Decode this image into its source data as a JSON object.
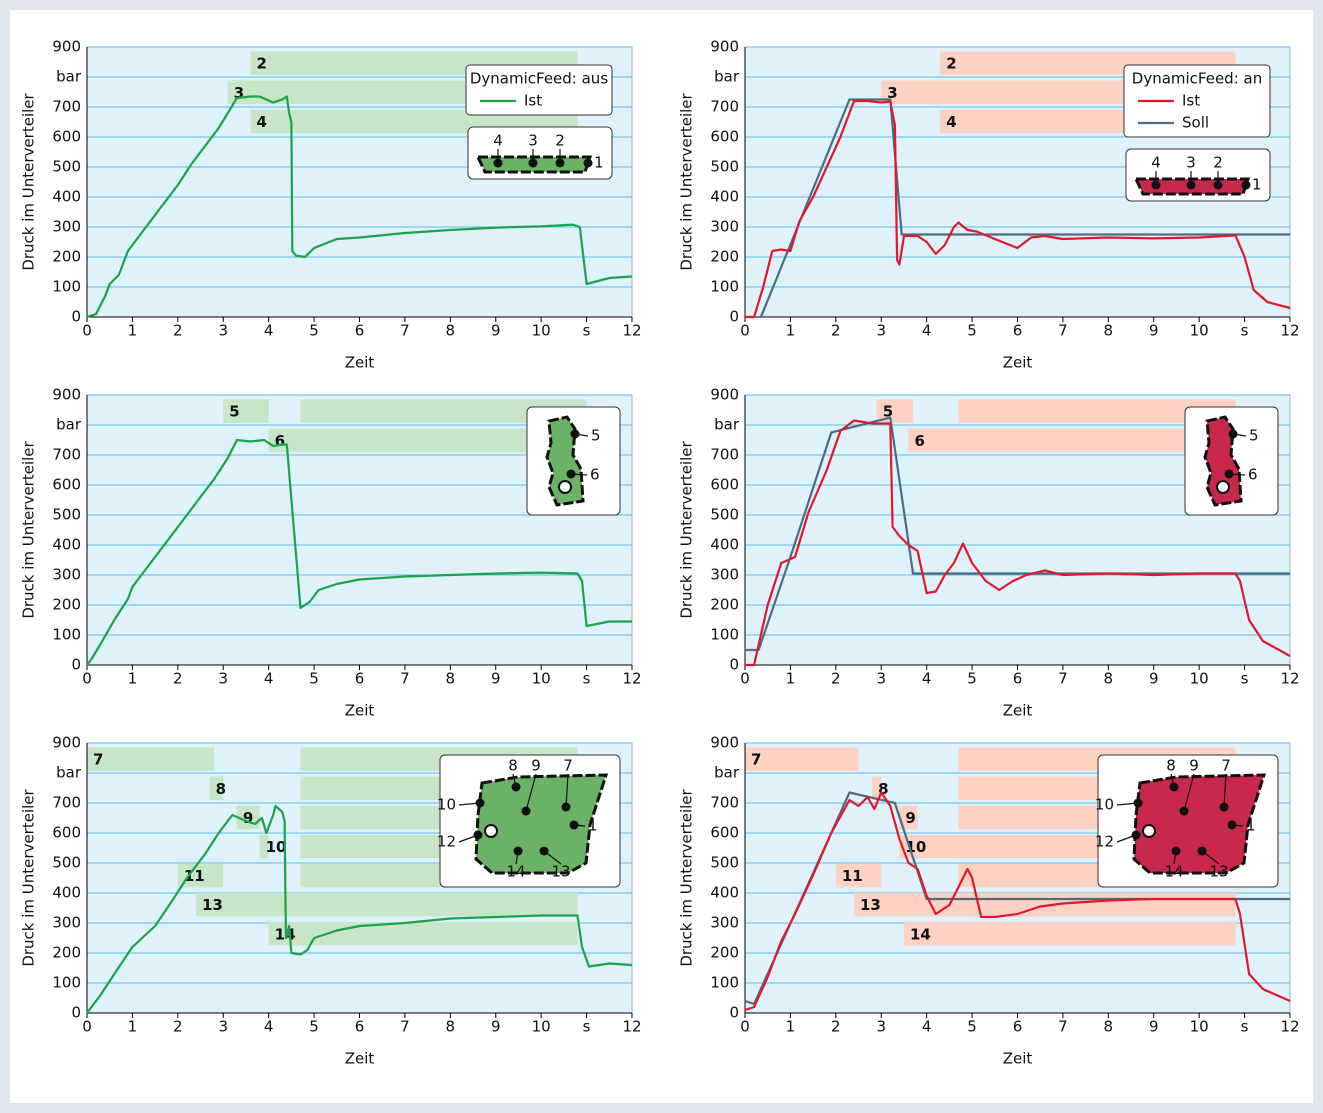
{
  "chart_data": [
    {
      "type": "line",
      "xlabel": "Zeit",
      "ylabel": "Druck im Unterverteiler",
      "xlim": [
        0,
        12
      ],
      "ylim": [
        0,
        900
      ],
      "xticks": [
        0,
        1,
        2,
        3,
        4,
        5,
        6,
        7,
        8,
        9,
        10,
        {
          "value": 11,
          "label": "s"
        },
        12
      ],
      "yticks": [
        0,
        100,
        200,
        300,
        400,
        500,
        600,
        700,
        {
          "value": 800,
          "label": "bar"
        },
        900
      ],
      "grid": true,
      "legend_title": "DynamicFeed: aus",
      "band_color": "#c9e5c8",
      "inset_color": "#6ab265",
      "inset_labels": [
        "4",
        "3",
        "2",
        "1"
      ],
      "bands": [
        {
          "label": "2",
          "segments": [
            [
              3.6,
              10.8
            ]
          ]
        },
        {
          "label": "3",
          "segments": [
            [
              3.1,
              10.8
            ]
          ]
        },
        {
          "label": "4",
          "segments": [
            [
              3.6,
              10.8
            ]
          ]
        }
      ],
      "series": [
        {
          "name": "Ist",
          "color": "#1aa34a",
          "x": [
            0,
            0.2,
            0.3,
            0.4,
            0.5,
            0.7,
            0.9,
            1.1,
            1.3,
            1.5,
            1.7,
            2.0,
            2.3,
            2.6,
            2.9,
            3.1,
            3.3,
            3.6,
            3.8,
            4.1,
            4.3,
            4.4,
            4.45,
            4.5,
            4.52,
            4.6,
            4.8,
            5.0,
            5.5,
            6,
            7,
            8,
            9,
            10,
            10.7,
            10.85,
            11.0,
            11.5,
            12
          ],
          "values": [
            0,
            10,
            40,
            70,
            110,
            140,
            220,
            260,
            300,
            340,
            380,
            440,
            510,
            570,
            630,
            680,
            730,
            735,
            735,
            715,
            725,
            735,
            680,
            650,
            220,
            205,
            200,
            230,
            260,
            265,
            280,
            290,
            298,
            302,
            308,
            300,
            110,
            130,
            135
          ]
        }
      ]
    },
    {
      "type": "line",
      "xlabel": "Zeit",
      "ylabel": "Druck im Unterverteiler",
      "xlim": [
        0,
        12
      ],
      "ylim": [
        0,
        900
      ],
      "xticks": [
        0,
        1,
        2,
        3,
        4,
        5,
        6,
        7,
        8,
        9,
        10,
        {
          "value": 11,
          "label": "s"
        },
        12
      ],
      "yticks": [
        0,
        100,
        200,
        300,
        400,
        500,
        600,
        700,
        {
          "value": 800,
          "label": "bar"
        },
        900
      ],
      "grid": true,
      "legend_title": "DynamicFeed: an",
      "band_color": "#fdd2c2",
      "inset_color": "#c8284a",
      "inset_labels": [
        "4",
        "3",
        "2",
        "1"
      ],
      "bands": [
        {
          "label": "2",
          "segments": [
            [
              4.3,
              10.8
            ]
          ]
        },
        {
          "label": "3",
          "segments": [
            [
              3.0,
              10.8
            ]
          ]
        },
        {
          "label": "4",
          "segments": [
            [
              4.3,
              10.8
            ]
          ]
        }
      ],
      "series": [
        {
          "name": "Ist",
          "color": "#e3172b",
          "x": [
            0,
            0.2,
            0.4,
            0.6,
            0.8,
            1.0,
            1.2,
            1.5,
            1.8,
            2.1,
            2.4,
            2.7,
            3.0,
            3.2,
            3.3,
            3.35,
            3.4,
            3.5,
            3.8,
            4.0,
            4.2,
            4.4,
            4.6,
            4.7,
            4.9,
            5.1,
            5.5,
            6,
            6.3,
            6.6,
            7,
            8,
            9,
            10,
            10.8,
            11.0,
            11.2,
            11.5,
            12
          ],
          "values": [
            0,
            0,
            100,
            220,
            225,
            220,
            320,
            400,
            500,
            600,
            720,
            720,
            715,
            718,
            640,
            190,
            175,
            270,
            270,
            250,
            210,
            240,
            300,
            315,
            290,
            285,
            260,
            230,
            265,
            270,
            260,
            265,
            262,
            265,
            272,
            200,
            90,
            50,
            30
          ]
        },
        {
          "name": "Soll",
          "color": "#4d6b83",
          "x": [
            0.35,
            2.3,
            3.2,
            3.45,
            12
          ],
          "values": [
            0,
            725,
            725,
            275,
            275
          ]
        }
      ]
    },
    {
      "type": "line",
      "xlabel": "Zeit",
      "ylabel": "Druck im Unterverteiler",
      "xlim": [
        0,
        12
      ],
      "ylim": [
        0,
        900
      ],
      "xticks": [
        0,
        1,
        2,
        3,
        4,
        5,
        6,
        7,
        8,
        9,
        10,
        {
          "value": 11,
          "label": "s"
        },
        12
      ],
      "yticks": [
        0,
        100,
        200,
        300,
        400,
        500,
        600,
        700,
        {
          "value": 800,
          "label": "bar"
        },
        900
      ],
      "grid": true,
      "band_color": "#c9e5c8",
      "inset_color": "#6ab265",
      "inset_labels": [
        "5",
        "6"
      ],
      "bands": [
        {
          "label": "5",
          "segments": [
            [
              3.0,
              4.0
            ],
            [
              4.7,
              11.0
            ]
          ]
        },
        {
          "label": "6",
          "segments": [
            [
              4.0,
              11.0
            ]
          ]
        }
      ],
      "series": [
        {
          "color": "#1aa34a",
          "x": [
            0,
            0.1,
            0.3,
            0.6,
            0.9,
            1.0,
            1.3,
            1.7,
            2.1,
            2.5,
            2.8,
            3.1,
            3.3,
            3.6,
            3.9,
            4.1,
            4.3,
            4.4,
            4.7,
            4.9,
            5.1,
            5.5,
            6,
            7,
            8,
            9,
            10,
            10.8,
            10.9,
            11.0,
            11.5,
            12
          ],
          "values": [
            0,
            20,
            70,
            150,
            220,
            260,
            320,
            400,
            480,
            560,
            620,
            690,
            750,
            745,
            750,
            730,
            735,
            735,
            190,
            210,
            250,
            270,
            285,
            295,
            300,
            305,
            308,
            305,
            280,
            130,
            145,
            145
          ]
        }
      ]
    },
    {
      "type": "line",
      "xlabel": "Zeit",
      "ylabel": "Druck im Unterverteiler",
      "xlim": [
        0,
        12
      ],
      "ylim": [
        0,
        900
      ],
      "xticks": [
        0,
        1,
        2,
        3,
        4,
        5,
        6,
        7,
        8,
        9,
        10,
        {
          "value": 11,
          "label": "s"
        },
        12
      ],
      "yticks": [
        0,
        100,
        200,
        300,
        400,
        500,
        600,
        700,
        {
          "value": 800,
          "label": "bar"
        },
        900
      ],
      "grid": true,
      "band_color": "#fdd2c2",
      "inset_color": "#c8284a",
      "inset_labels": [
        "5",
        "6"
      ],
      "bands": [
        {
          "label": "5",
          "segments": [
            [
              2.9,
              3.7
            ],
            [
              4.7,
              10.8
            ]
          ]
        },
        {
          "label": "6",
          "segments": [
            [
              3.6,
              10.8
            ]
          ]
        }
      ],
      "series": [
        {
          "color": "#e3172b",
          "x": [
            0,
            0.2,
            0.5,
            0.8,
            1.1,
            1.4,
            1.8,
            2.1,
            2.4,
            2.8,
            3.2,
            3.25,
            3.4,
            3.6,
            3.8,
            4.0,
            4.2,
            4.4,
            4.6,
            4.8,
            5.0,
            5.3,
            5.6,
            5.9,
            6.2,
            6.6,
            7,
            8,
            9,
            10,
            10.8,
            10.9,
            11.1,
            11.4,
            12
          ],
          "values": [
            0,
            0,
            200,
            340,
            360,
            510,
            650,
            780,
            815,
            805,
            805,
            460,
            430,
            400,
            380,
            240,
            245,
            300,
            340,
            405,
            340,
            280,
            250,
            280,
            300,
            315,
            300,
            305,
            300,
            305,
            305,
            280,
            150,
            80,
            30
          ]
        },
        {
          "color": "#4d6b83",
          "x": [
            0,
            0.3,
            1.0,
            1.9,
            3.2,
            3.7,
            12
          ],
          "values": [
            50,
            50,
            360,
            775,
            825,
            305,
            305
          ]
        }
      ]
    },
    {
      "type": "line",
      "xlabel": "Zeit",
      "ylabel": "Druck im Unterverteiler",
      "xlim": [
        0,
        12
      ],
      "ylim": [
        0,
        900
      ],
      "xticks": [
        0,
        1,
        2,
        3,
        4,
        5,
        6,
        7,
        8,
        9,
        10,
        {
          "value": 11,
          "label": "s"
        },
        12
      ],
      "yticks": [
        0,
        100,
        200,
        300,
        400,
        500,
        600,
        700,
        {
          "value": 800,
          "label": "bar"
        },
        900
      ],
      "grid": true,
      "band_color": "#c9e5c8",
      "inset_color": "#6ab265",
      "inset_labels": [
        "8",
        "9",
        "7",
        "10",
        "1",
        "12",
        "14",
        "13"
      ],
      "bands": [
        {
          "label": "7",
          "segments": [
            [
              0,
              2.8
            ],
            [
              4.7,
              10.8
            ]
          ]
        },
        {
          "label": "8",
          "segments": [
            [
              2.7,
              3.0
            ],
            [
              4.7,
              10.8
            ]
          ]
        },
        {
          "label": "9",
          "segments": [
            [
              3.3,
              3.8
            ],
            [
              4.7,
              10.8
            ]
          ]
        },
        {
          "label": "10",
          "segments": [
            [
              3.8,
              4.0
            ],
            [
              4.7,
              10.8
            ]
          ]
        },
        {
          "label": "11",
          "segments": [
            [
              2.0,
              3.0
            ],
            [
              4.7,
              10.8
            ]
          ]
        },
        {
          "label": "13",
          "segments": [
            [
              2.4,
              10.8
            ]
          ]
        },
        {
          "label": "14",
          "segments": [
            [
              4.0,
              10.8
            ]
          ]
        }
      ],
      "series": [
        {
          "color": "#1aa34a",
          "x": [
            0,
            0.1,
            0.3,
            0.6,
            1.0,
            1.5,
            1.9,
            2.2,
            2.6,
            2.9,
            3.2,
            3.5,
            3.7,
            3.85,
            3.95,
            4.1,
            4.15,
            4.3,
            4.35,
            4.38,
            4.45,
            4.5,
            4.7,
            4.85,
            5.0,
            5.5,
            6,
            7,
            8,
            9,
            10,
            10.8,
            10.9,
            11.05,
            11.5,
            12
          ],
          "values": [
            0,
            20,
            60,
            130,
            220,
            290,
            380,
            450,
            530,
            600,
            660,
            640,
            630,
            650,
            600,
            660,
            690,
            670,
            640,
            250,
            290,
            200,
            195,
            210,
            250,
            275,
            290,
            300,
            315,
            320,
            325,
            325,
            220,
            155,
            165,
            160
          ]
        }
      ]
    },
    {
      "type": "line",
      "xlabel": "Zeit",
      "ylabel": "Druck im Unterverteiler",
      "xlim": [
        0,
        12
      ],
      "ylim": [
        0,
        900
      ],
      "xticks": [
        0,
        1,
        2,
        3,
        4,
        5,
        6,
        7,
        8,
        9,
        10,
        {
          "value": 11,
          "label": "s"
        },
        12
      ],
      "yticks": [
        0,
        100,
        200,
        300,
        400,
        500,
        600,
        700,
        {
          "value": 800,
          "label": "bar"
        },
        900
      ],
      "grid": true,
      "band_color": "#fdd2c2",
      "inset_color": "#c8284a",
      "inset_labels": [
        "8",
        "9",
        "7",
        "10",
        "1",
        "12",
        "14",
        "13"
      ],
      "bands": [
        {
          "label": "7",
          "segments": [
            [
              0,
              2.5
            ],
            [
              4.7,
              10.8
            ]
          ]
        },
        {
          "label": "8",
          "segments": [
            [
              2.8,
              3.0
            ],
            [
              4.7,
              10.8
            ]
          ]
        },
        {
          "label": "9",
          "segments": [
            [
              3.4,
              3.8
            ],
            [
              4.7,
              10.8
            ]
          ]
        },
        {
          "label": "10",
          "segments": [
            [
              3.4,
              10.8
            ]
          ]
        },
        {
          "label": "11",
          "segments": [
            [
              2.0,
              3.0
            ],
            [
              4.7,
              10.8
            ]
          ]
        },
        {
          "label": "13",
          "segments": [
            [
              2.4,
              10.8
            ]
          ]
        },
        {
          "label": "14",
          "segments": [
            [
              3.5,
              10.8
            ]
          ]
        }
      ],
      "series": [
        {
          "color": "#e3172b",
          "x": [
            0,
            0.2,
            0.5,
            0.8,
            1.1,
            1.5,
            1.9,
            2.3,
            2.5,
            2.7,
            2.85,
            3.0,
            3.2,
            3.4,
            3.6,
            3.8,
            4.0,
            4.2,
            4.5,
            4.7,
            4.9,
            5.0,
            5.2,
            5.5,
            6,
            6.5,
            7,
            8,
            9,
            10,
            10.8,
            10.9,
            11.1,
            11.4,
            12
          ],
          "values": [
            10,
            20,
            120,
            240,
            330,
            460,
            600,
            710,
            690,
            720,
            680,
            735,
            690,
            580,
            500,
            480,
            390,
            330,
            360,
            420,
            480,
            450,
            320,
            320,
            330,
            355,
            365,
            375,
            380,
            380,
            380,
            330,
            130,
            80,
            40
          ]
        },
        {
          "color": "#4d6b83",
          "x": [
            0,
            0.2,
            2.3,
            3.3,
            4.0,
            12
          ],
          "values": [
            40,
            30,
            735,
            700,
            380,
            380
          ]
        }
      ]
    }
  ]
}
